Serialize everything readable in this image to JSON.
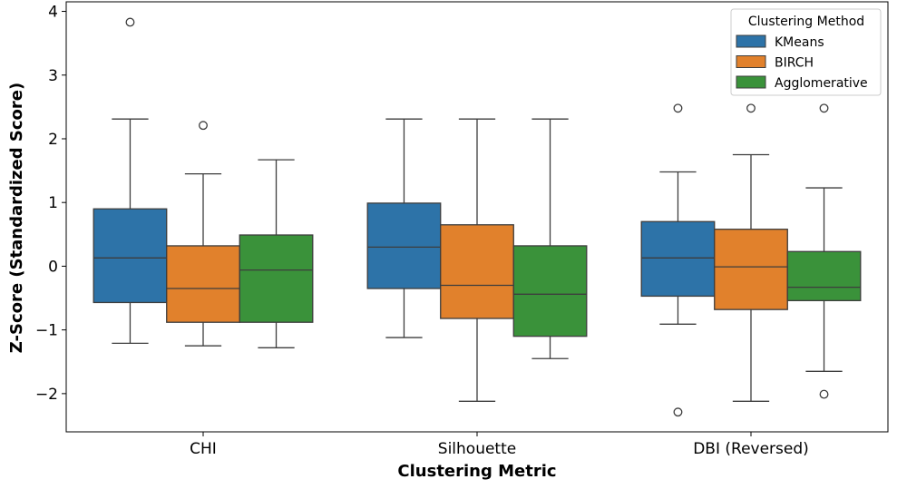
{
  "chart_data": {
    "type": "boxplot",
    "title": "",
    "xlabel": "Clustering Metric",
    "ylabel": "Z-Score (Standardized Score)",
    "categories": [
      "CHI",
      "Silhouette",
      "DBI (Reversed)"
    ],
    "ylim": [
      -2.6,
      4.15
    ],
    "yticks": [
      -2,
      -1,
      0,
      1,
      2,
      3,
      4
    ],
    "ytick_labels": [
      "−2",
      "−1",
      "0",
      "1",
      "2",
      "3",
      "4"
    ],
    "grid": false,
    "legend": {
      "title": "Clustering Method",
      "placement": "top-right"
    },
    "series": [
      {
        "name": "KMeans",
        "color": "#2d73a8",
        "boxes": [
          {
            "whisker_low": -1.21,
            "q1": -0.57,
            "median": 0.13,
            "q3": 0.9,
            "whisker_high": 2.31,
            "outliers": [
              3.83
            ]
          },
          {
            "whisker_low": -1.12,
            "q1": -0.35,
            "median": 0.3,
            "q3": 0.99,
            "whisker_high": 2.31,
            "outliers": []
          },
          {
            "whisker_low": -0.91,
            "q1": -0.47,
            "median": 0.13,
            "q3": 0.7,
            "whisker_high": 1.48,
            "outliers": [
              2.48,
              -2.29
            ]
          }
        ]
      },
      {
        "name": "BIRCH",
        "color": "#e1812c",
        "boxes": [
          {
            "whisker_low": -1.25,
            "q1": -0.88,
            "median": -0.35,
            "q3": 0.32,
            "whisker_high": 1.45,
            "outliers": [
              2.21
            ]
          },
          {
            "whisker_low": -2.12,
            "q1": -0.82,
            "median": -0.3,
            "q3": 0.65,
            "whisker_high": 2.31,
            "outliers": []
          },
          {
            "whisker_low": -2.12,
            "q1": -0.68,
            "median": -0.01,
            "q3": 0.58,
            "whisker_high": 1.75,
            "outliers": [
              2.48
            ]
          }
        ]
      },
      {
        "name": "Agglomerative",
        "color": "#3a923a",
        "boxes": [
          {
            "whisker_low": -1.28,
            "q1": -0.88,
            "median": -0.06,
            "q3": 0.49,
            "whisker_high": 1.67,
            "outliers": []
          },
          {
            "whisker_low": -1.45,
            "q1": -1.1,
            "median": -0.44,
            "q3": 0.32,
            "whisker_high": 2.31,
            "outliers": []
          },
          {
            "whisker_low": -1.65,
            "q1": -0.54,
            "median": -0.33,
            "q3": 0.23,
            "whisker_high": 1.23,
            "outliers": [
              2.48,
              -2.01
            ]
          }
        ]
      }
    ]
  }
}
